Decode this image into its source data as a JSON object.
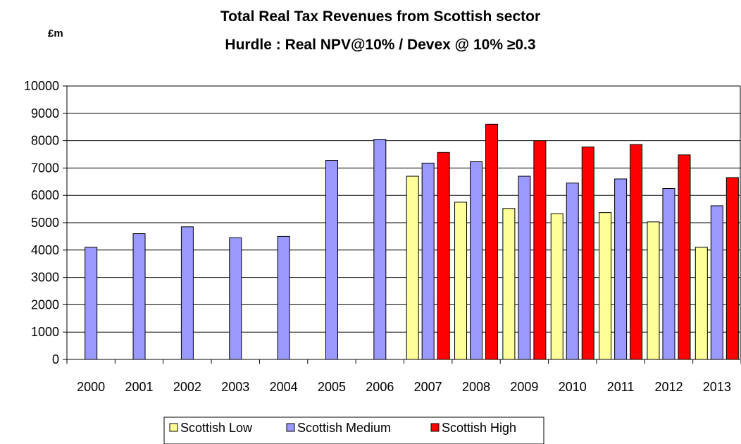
{
  "chart_data": {
    "type": "bar",
    "title": "Total Real Tax Revenues from  Scottish sector",
    "subtitle": "Hurdle : Real NPV@10% / Devex  @ 10% ≥0.3",
    "unit_label": "£m",
    "xlabel": "",
    "ylabel": "",
    "ylim": [
      0,
      10000
    ],
    "y_ticks": [
      0,
      1000,
      2000,
      3000,
      4000,
      5000,
      6000,
      7000,
      8000,
      9000,
      10000
    ],
    "grid": true,
    "legend_position": "bottom",
    "categories": [
      "2000",
      "2001",
      "2002",
      "2003",
      "2004",
      "2005",
      "2006",
      "2007",
      "2008",
      "2009",
      "2010",
      "2011",
      "2012",
      "2013"
    ],
    "series": [
      {
        "name": "Scottish Low",
        "color": "#FFFF99",
        "values": [
          null,
          null,
          null,
          null,
          null,
          null,
          null,
          6700,
          5750,
          5520,
          5330,
          5370,
          5030,
          4100
        ]
      },
      {
        "name": "Scottish Medium",
        "color": "#9999FF",
        "values": [
          4100,
          4600,
          4850,
          4450,
          4500,
          7280,
          8050,
          7180,
          7230,
          6700,
          6450,
          6600,
          6250,
          5620
        ]
      },
      {
        "name": "Scottish High",
        "color": "#FF0000",
        "values": [
          null,
          null,
          null,
          null,
          null,
          null,
          null,
          7570,
          8600,
          8000,
          7770,
          7860,
          7480,
          6650
        ]
      }
    ]
  }
}
